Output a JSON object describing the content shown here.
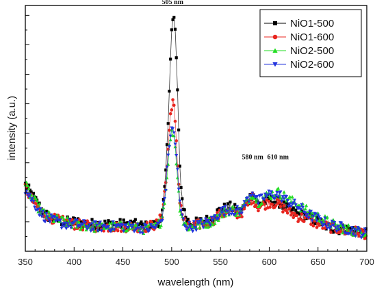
{
  "chart_data": {
    "type": "scatter",
    "title": "",
    "xlabel": "wavelength (nm)",
    "ylabel": "intensity (a.u.)",
    "xlim": [
      350,
      700
    ],
    "ylim": [
      0,
      100
    ],
    "x_ticks": [
      "350",
      "400",
      "450",
      "500",
      "550",
      "600",
      "650",
      "700"
    ],
    "y_tick_labels_shown": false,
    "grid": false,
    "legend_position": "top-right",
    "annotations": [
      {
        "text": "505 nm",
        "x": 501,
        "y": 100.5
      },
      {
        "text": "580 nm",
        "x": 583,
        "y": 37.5
      },
      {
        "text": "610 nm",
        "x": 609,
        "y": 37.5
      }
    ],
    "series": [
      {
        "name": "NiO1-500",
        "color": "#000000",
        "marker": "square",
        "x": [
          350,
          355,
          360,
          365,
          370,
          380,
          390,
          400,
          420,
          440,
          460,
          475,
          485,
          490,
          493,
          496,
          498,
          500,
          502,
          504,
          506,
          508,
          511,
          515,
          520,
          530,
          540,
          550,
          560,
          570,
          578,
          583,
          588,
          595,
          600,
          610,
          620,
          630,
          640,
          650,
          660,
          670,
          680,
          690,
          700
        ],
        "y": [
          27,
          24,
          21,
          18,
          15,
          13,
          12,
          12,
          11,
          11,
          11,
          10,
          11,
          14,
          25,
          48,
          72,
          90,
          96,
          88,
          65,
          36,
          20,
          13,
          11,
          12,
          13,
          17,
          18,
          16,
          20,
          24,
          19,
          20,
          21,
          20,
          17,
          15,
          14,
          12,
          10,
          9,
          9,
          8,
          7
        ]
      },
      {
        "name": "NiO1-600",
        "color": "#e8251f",
        "marker": "circle",
        "x": [
          350,
          355,
          360,
          365,
          370,
          380,
          390,
          400,
          420,
          440,
          460,
          475,
          485,
          490,
          494,
          497,
          499,
          501,
          503,
          505,
          508,
          512,
          516,
          520,
          530,
          540,
          550,
          560,
          570,
          578,
          583,
          588,
          595,
          600,
          610,
          620,
          630,
          640,
          650,
          660,
          670,
          680,
          690,
          700
        ],
        "y": [
          26,
          22,
          19,
          17,
          15,
          13,
          12,
          11,
          10,
          10,
          10,
          10,
          11,
          14,
          28,
          45,
          57,
          62,
          56,
          42,
          22,
          13,
          10,
          10,
          11,
          12,
          15,
          16,
          15,
          19,
          22,
          18,
          19,
          20,
          19,
          16,
          14,
          13,
          11,
          10,
          9,
          8,
          8,
          7
        ]
      },
      {
        "name": "NiO2-500",
        "color": "#22dd22",
        "marker": "triangle-up",
        "x": [
          350,
          355,
          360,
          365,
          370,
          380,
          390,
          400,
          420,
          440,
          460,
          475,
          485,
          490,
          494,
          497,
          499,
          501,
          503,
          505,
          508,
          512,
          516,
          520,
          530,
          540,
          550,
          560,
          570,
          578,
          583,
          588,
          595,
          600,
          610,
          620,
          630,
          640,
          650,
          660,
          670,
          680,
          690,
          700
        ],
        "y": [
          27,
          23,
          20,
          17,
          15,
          13,
          12,
          11,
          10,
          10,
          10,
          9,
          10,
          13,
          25,
          40,
          47,
          49,
          46,
          36,
          19,
          12,
          10,
          10,
          11,
          12,
          15,
          17,
          16,
          21,
          24,
          20,
          22,
          23,
          24,
          21,
          19,
          16,
          14,
          12,
          10,
          9,
          8,
          8
        ]
      },
      {
        "name": "NiO2-600",
        "color": "#2233dd",
        "marker": "triangle-down",
        "x": [
          350,
          355,
          360,
          365,
          370,
          380,
          390,
          400,
          420,
          440,
          460,
          475,
          485,
          490,
          494,
          497,
          499,
          501,
          503,
          505,
          508,
          512,
          516,
          520,
          530,
          540,
          550,
          560,
          570,
          578,
          583,
          588,
          595,
          600,
          610,
          620,
          630,
          640,
          650,
          660,
          670,
          680,
          690,
          700
        ],
        "y": [
          25,
          22,
          19,
          16,
          14,
          12,
          11,
          11,
          10,
          10,
          10,
          9,
          10,
          13,
          26,
          42,
          48,
          50,
          47,
          38,
          20,
          12,
          10,
          10,
          11,
          12,
          16,
          17,
          16,
          21,
          25,
          20,
          22,
          23,
          23,
          20,
          18,
          15,
          13,
          11,
          10,
          9,
          8,
          7
        ]
      }
    ]
  }
}
